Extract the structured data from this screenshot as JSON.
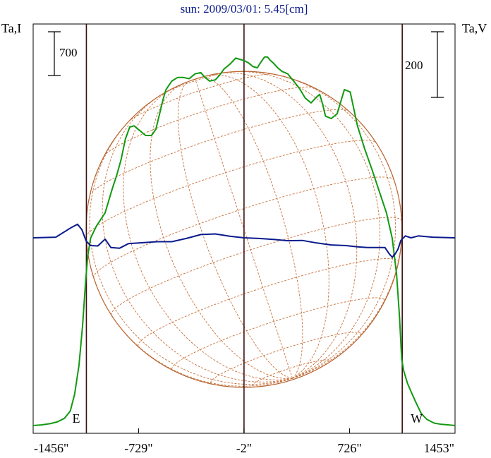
{
  "chart_data": {
    "type": "line",
    "title": "sun: 2009/03/01: 5.45[cm]",
    "left_axis_label": "Ta,I",
    "right_axis_label": "Ta,V",
    "scale_bar_left_label": "700",
    "scale_bar_right_label": "200",
    "x_tick_labels": [
      "-1456\"",
      "-729\"",
      "-2\"",
      "726\"",
      "1453\""
    ],
    "x_tick_values": [
      -1456,
      -729,
      -2,
      726,
      1453
    ],
    "xlim": [
      -1456,
      1453
    ],
    "limb_markers": [
      {
        "label": "E",
        "x": -1089
      },
      {
        "label": "W",
        "x": 1089
      }
    ],
    "center_x": -2,
    "grid": false,
    "series": [
      {
        "name": "Ta,I",
        "color": "#119911",
        "x": [
          -1456,
          -1400,
          -1340,
          -1290,
          -1240,
          -1200,
          -1170,
          -1140,
          -1115,
          -1095,
          -1080,
          -1060,
          -1020,
          -960,
          -910,
          -880,
          -850,
          -820,
          -790,
          -760,
          -720,
          -680,
          -640,
          -610,
          -580,
          -560,
          -540,
          -500,
          -460,
          -420,
          -380,
          -340,
          -300,
          -270,
          -240,
          -200,
          -170,
          -140,
          -100,
          -60,
          -30,
          -2,
          30,
          60,
          90,
          110,
          140,
          160,
          180,
          200,
          230,
          260,
          300,
          340,
          380,
          420,
          460,
          500,
          520,
          540,
          560,
          600,
          640,
          690,
          730,
          780,
          830,
          880,
          930,
          980,
          1020,
          1050,
          1070,
          1085,
          1100,
          1125,
          1150,
          1180,
          1220,
          1260,
          1310,
          1360,
          1410,
          1453
        ],
        "values": [
          0,
          5,
          15,
          30,
          60,
          120,
          260,
          500,
          830,
          1180,
          1400,
          1550,
          1650,
          1760,
          1960,
          2070,
          2200,
          2370,
          2470,
          2480,
          2440,
          2400,
          2400,
          2450,
          2600,
          2700,
          2780,
          2850,
          2880,
          2880,
          2870,
          2910,
          2920,
          2880,
          2850,
          2860,
          2900,
          2950,
          2990,
          3040,
          3030,
          3020,
          3000,
          2970,
          2960,
          3000,
          3050,
          3050,
          3020,
          3000,
          2960,
          2930,
          2910,
          2850,
          2790,
          2710,
          2670,
          2720,
          2740,
          2660,
          2560,
          2540,
          2580,
          2780,
          2760,
          2480,
          2290,
          2120,
          1940,
          1760,
          1550,
          1250,
          900,
          550,
          450,
          350,
          280,
          200,
          100,
          50,
          20,
          10,
          5,
          0
        ],
        "ylim": [
          0,
          3200
        ]
      },
      {
        "name": "Ta,V",
        "color": "#0a1a8c",
        "x": [
          -1456,
          -1300,
          -1200,
          -1150,
          -1120,
          -1090,
          -1060,
          -1010,
          -960,
          -920,
          -860,
          -800,
          -700,
          -600,
          -500,
          -400,
          -300,
          -200,
          -100,
          -2,
          100,
          200,
          300,
          400,
          500,
          600,
          700,
          780,
          850,
          920,
          970,
          1000,
          1020,
          1040,
          1060,
          1080,
          1110,
          1150,
          1200,
          1300,
          1453
        ],
        "values": [
          0,
          2,
          30,
          42,
          25,
          -10,
          -24,
          -25,
          -4,
          -30,
          -32,
          -18,
          -15,
          -12,
          -12,
          -2,
          10,
          12,
          5,
          0,
          -2,
          -5,
          -9,
          -8,
          -16,
          -22,
          -24,
          -28,
          -30,
          -30,
          -30,
          -50,
          -60,
          -50,
          -35,
          -8,
          6,
          0,
          6,
          2,
          0
        ],
        "ylim": [
          -600,
          600
        ]
      }
    ],
    "overlay": "solar disk with heliographic coordinate grid"
  }
}
